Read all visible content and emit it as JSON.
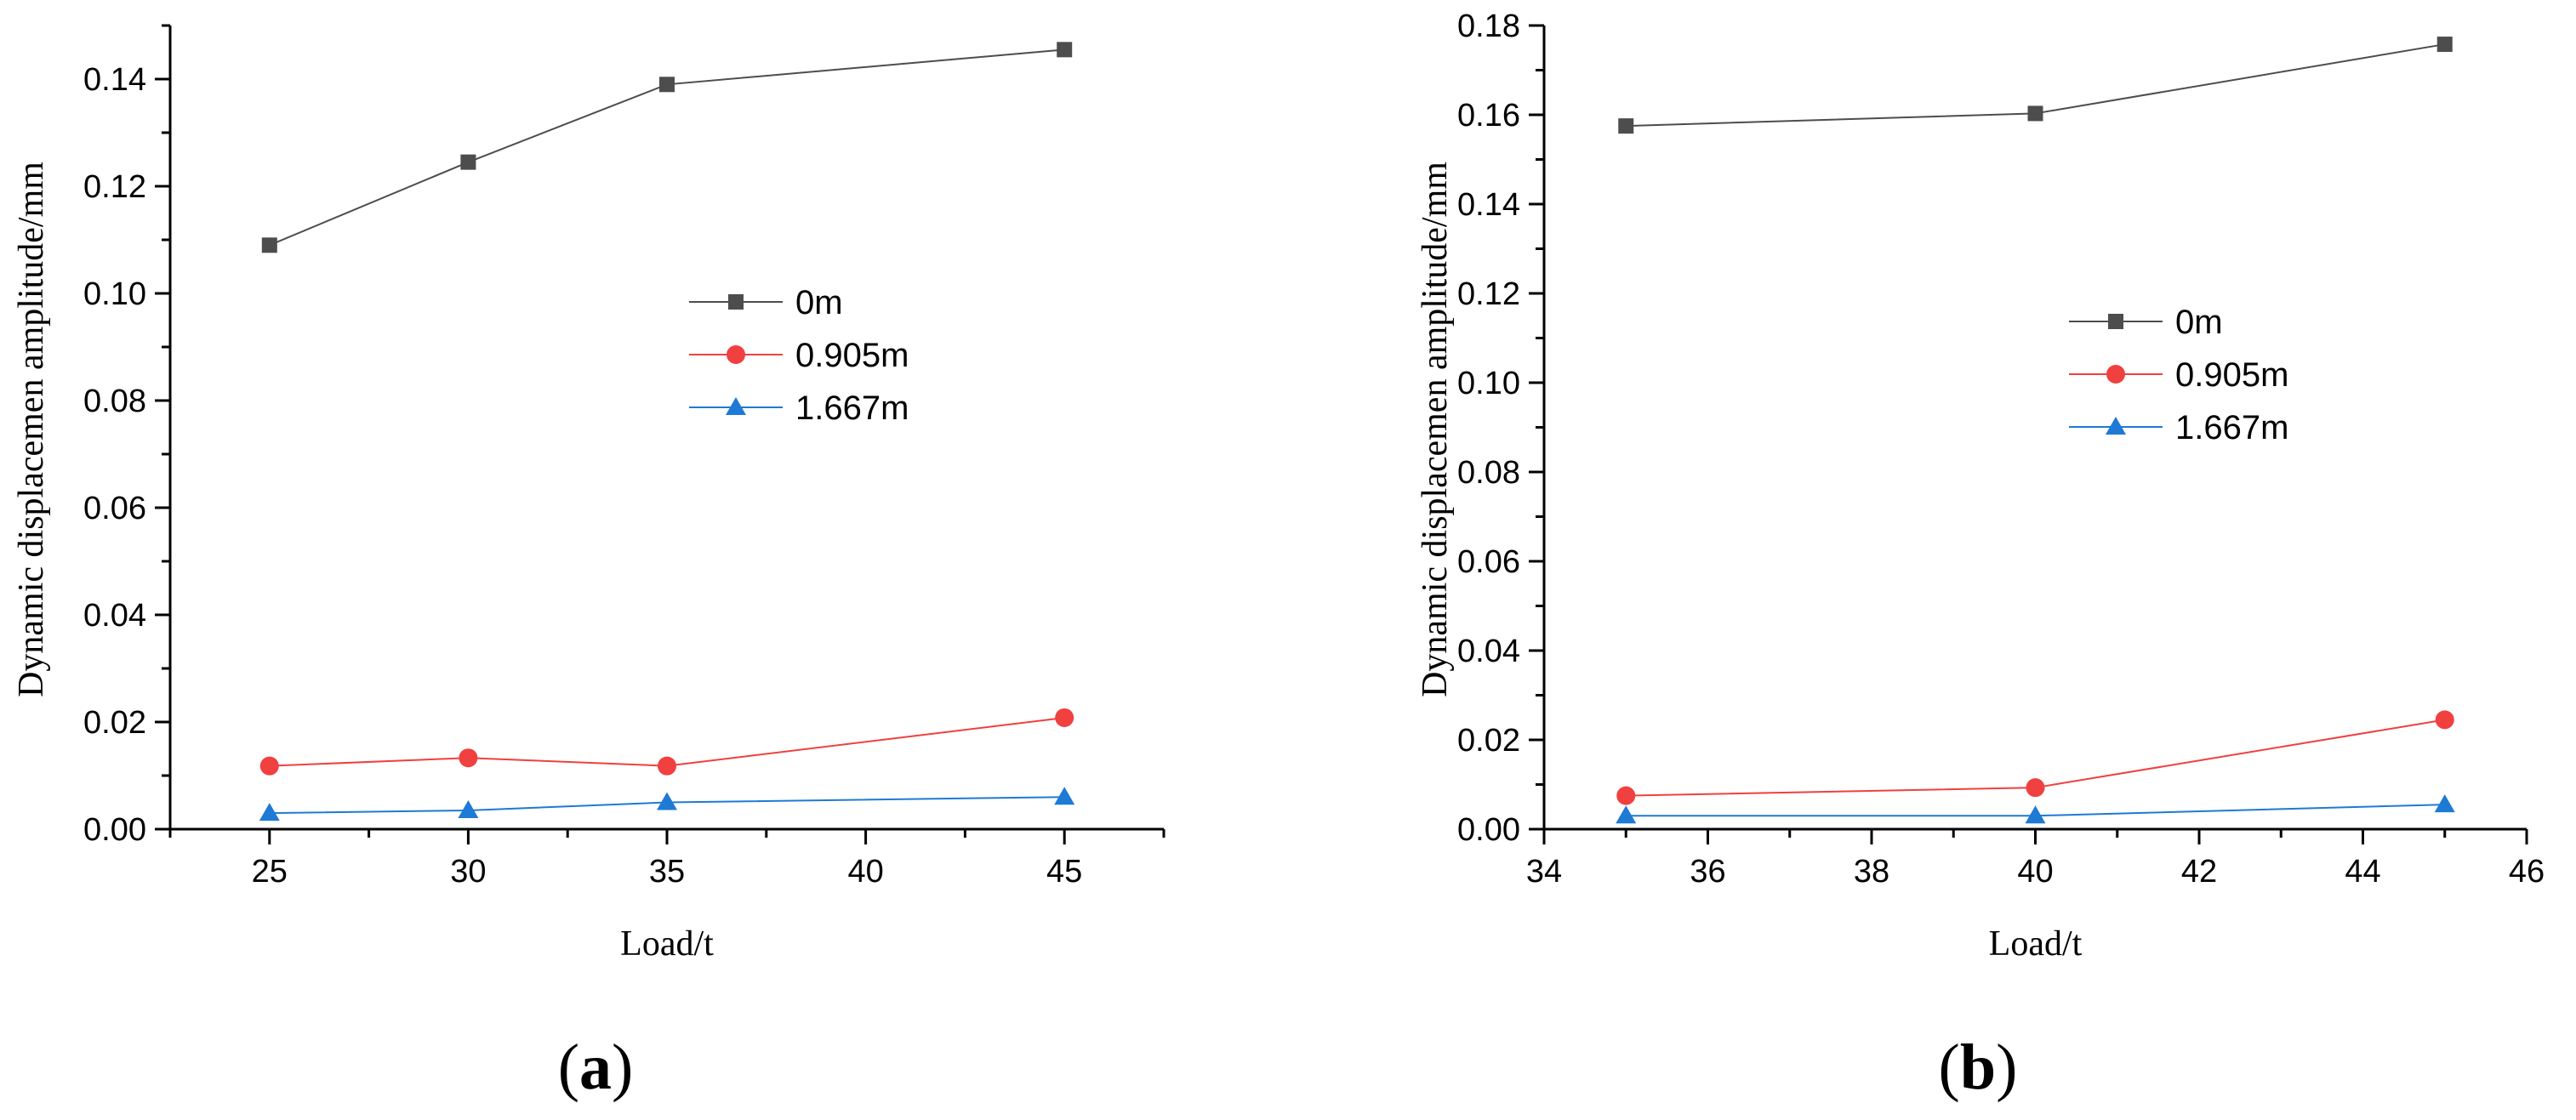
{
  "chart_data": [
    {
      "type": "line",
      "panel_label": "a",
      "x": [
        25,
        30,
        35,
        45
      ],
      "xlim": [
        22.5,
        47.5
      ],
      "ylim": [
        0,
        0.15
      ],
      "xticks": [
        "25",
        "30",
        "35",
        "40",
        "45"
      ],
      "yticks": [
        "0.00",
        "0.02",
        "0.04",
        "0.06",
        "0.08",
        "0.10",
        "0.12",
        "0.14"
      ],
      "xlabel": "Load/t",
      "ylabel": "Dynamic displacemen amplitude/mm",
      "legend_position": "center",
      "series": [
        {
          "name": "0m",
          "color": "#4d4d4d",
          "marker": "square",
          "values": [
            0.109,
            0.1245,
            0.139,
            0.1455
          ]
        },
        {
          "name": "0.905m",
          "color": "#f0403f",
          "marker": "circle",
          "values": [
            0.0118,
            0.0133,
            0.0118,
            0.0208
          ]
        },
        {
          "name": "1.667m",
          "color": "#1e7ad4",
          "marker": "triangle",
          "values": [
            0.003,
            0.0035,
            0.005,
            0.006
          ]
        }
      ]
    },
    {
      "type": "line",
      "panel_label": "b",
      "x": [
        35,
        40,
        45
      ],
      "xlim": [
        34,
        46
      ],
      "ylim": [
        0,
        0.18
      ],
      "xticks": [
        "34",
        "36",
        "38",
        "40",
        "42",
        "44",
        "46"
      ],
      "yticks": [
        "0.00",
        "0.02",
        "0.04",
        "0.06",
        "0.08",
        "0.10",
        "0.12",
        "0.14",
        "0.16",
        "0.18"
      ],
      "xlabel": "Load/t",
      "ylabel": "Dynamic displacemen amplitude/mm",
      "legend_position": "center",
      "series": [
        {
          "name": "0m",
          "color": "#4d4d4d",
          "marker": "square",
          "values": [
            0.1575,
            0.1603,
            0.1758
          ]
        },
        {
          "name": "0.905m",
          "color": "#f0403f",
          "marker": "circle",
          "values": [
            0.0075,
            0.0093,
            0.0245
          ]
        },
        {
          "name": "1.667m",
          "color": "#1e7ad4",
          "marker": "triangle",
          "values": [
            0.003,
            0.003,
            0.0055
          ]
        }
      ]
    }
  ]
}
